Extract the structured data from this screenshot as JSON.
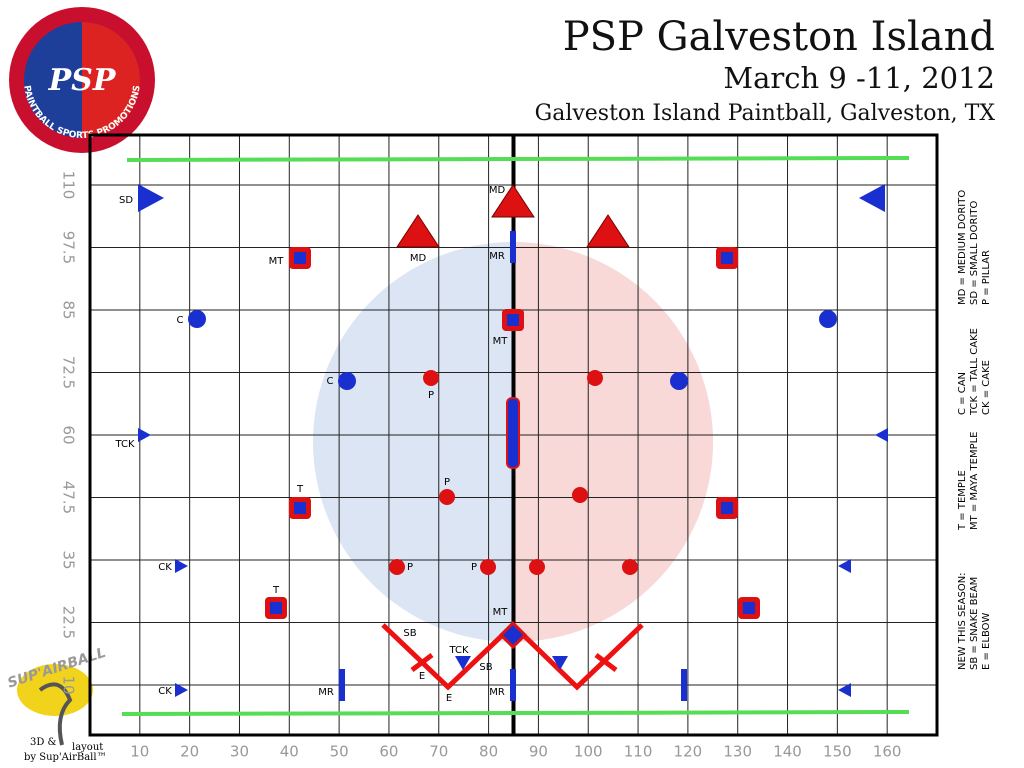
{
  "header": {
    "title": "PSP Galveston Island",
    "dates": "March 9 -11, 2012",
    "venue": "Galveston Island Paintball, Galveston, TX"
  },
  "logo": {
    "mark": "PSP",
    "ring": "PAINTBALL SPORTS PROMOTIONS",
    "brand": "SUP'AIRBALL"
  },
  "field": {
    "xlim": [
      0,
      170
    ],
    "ylim": [
      0,
      120
    ],
    "xticks": [
      10,
      20,
      30,
      40,
      50,
      60,
      70,
      80,
      90,
      100,
      110,
      120,
      130,
      140,
      150,
      160
    ],
    "yticks": [
      10,
      22.5,
      35,
      47.5,
      60,
      72.5,
      85,
      97.5,
      110
    ]
  },
  "bunker_labels": [
    "SD",
    "MD",
    "MD",
    "MR",
    "MT",
    "C",
    "MT",
    "C",
    "P",
    "TCK",
    "T",
    "P",
    "CK",
    "P",
    "P",
    "T",
    "SB",
    "E",
    "E",
    "MT",
    "TCK",
    "SB",
    "MR",
    "MR",
    "CK"
  ],
  "legend": [
    [
      "MD = MEDIUM DORITO",
      "SD = SMALL DORITO",
      "P = PILLAR"
    ],
    [
      "C = CAN",
      "TCK = TALL CAKE",
      "CK = CAKE"
    ],
    [
      "T = TEMPLE",
      "MT = MAYA TEMPLE"
    ],
    [
      "NEW THIS SEASON:",
      "SB = SNAKE BEAM",
      "E = ELBOW"
    ]
  ],
  "credit": {
    "line1": "3D &",
    "line2": "layout",
    "line3": "by Sup'AirBall™"
  }
}
